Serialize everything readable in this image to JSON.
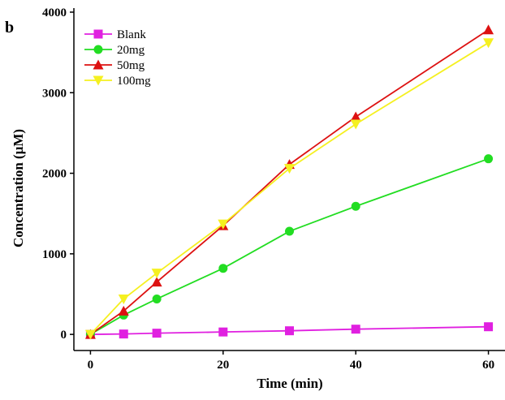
{
  "chart_data": {
    "type": "line",
    "panel_label": "b",
    "xlabel": "Time (min)",
    "ylabel": "Concentration (μM)",
    "xlim": [
      -2.5,
      62.5
    ],
    "ylim": [
      -200,
      4050
    ],
    "x_ticks": [
      0,
      20,
      40,
      60
    ],
    "y_ticks": [
      0,
      1000,
      2000,
      3000,
      4000
    ],
    "grid": false,
    "legend_position": "top-left",
    "series": [
      {
        "name": "Blank",
        "color": "#e020e0",
        "marker": "square",
        "x": [
          0,
          5,
          10,
          20,
          30,
          40,
          60
        ],
        "y": [
          0,
          5,
          15,
          30,
          45,
          65,
          95
        ]
      },
      {
        "name": "20mg",
        "color": "#22dd22",
        "marker": "circle",
        "x": [
          0,
          5,
          10,
          20,
          30,
          40,
          60
        ],
        "y": [
          0,
          240,
          440,
          820,
          1280,
          1590,
          2180
        ]
      },
      {
        "name": "50mg",
        "color": "#dd1111",
        "marker": "triangle-up",
        "x": [
          0,
          5,
          10,
          20,
          30,
          40,
          60
        ],
        "y": [
          0,
          290,
          650,
          1350,
          2110,
          2700,
          3780
        ]
      },
      {
        "name": "100mg",
        "color": "#f5f020",
        "marker": "triangle-down",
        "x": [
          0,
          5,
          10,
          20,
          30,
          40,
          60
        ],
        "y": [
          0,
          440,
          760,
          1370,
          2060,
          2610,
          3620
        ]
      }
    ]
  }
}
